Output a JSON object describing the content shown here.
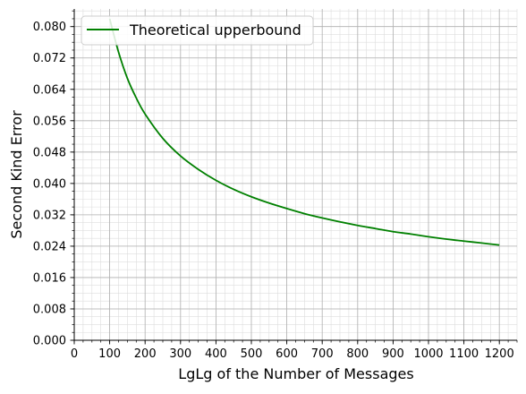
{
  "chart_data": {
    "type": "line",
    "title": "",
    "xlabel": "LgLg of the Number of Messages",
    "ylabel": "Second Kind Error",
    "xlim": [
      0,
      1250
    ],
    "ylim": [
      0,
      0.0845
    ],
    "x_ticks": [
      0,
      100,
      200,
      300,
      400,
      500,
      600,
      700,
      800,
      900,
      1000,
      1100,
      1200
    ],
    "x_tick_labels": [
      "0",
      "100",
      "200",
      "300",
      "400",
      "500",
      "600",
      "700",
      "800",
      "900",
      "1000",
      "1100",
      "1200"
    ],
    "y_ticks": [
      0,
      0.008,
      0.016,
      0.024,
      0.032,
      0.04,
      0.048,
      0.056,
      0.064,
      0.072,
      0.08
    ],
    "y_tick_labels": [
      "0.000",
      "0.008",
      "0.016",
      "0.024",
      "0.032",
      "0.040",
      "0.048",
      "0.056",
      "0.064",
      "0.072",
      "0.080"
    ],
    "grid": "major and minor",
    "legend": {
      "position": "top-left",
      "entries": [
        "Theoretical upperbound"
      ]
    },
    "series": [
      {
        "name": "Theoretical upperbound",
        "color": "#008000",
        "x": [
          100,
          125,
          150,
          175,
          200,
          250,
          300,
          350,
          400,
          450,
          500,
          550,
          600,
          650,
          700,
          750,
          800,
          850,
          900,
          950,
          1000,
          1050,
          1100,
          1150,
          1200
        ],
        "y": [
          0.082,
          0.0735,
          0.0668,
          0.0618,
          0.0577,
          0.0515,
          0.047,
          0.0436,
          0.0408,
          0.0385,
          0.0366,
          0.035,
          0.0336,
          0.0323,
          0.0312,
          0.0302,
          0.0293,
          0.0285,
          0.0277,
          0.0271,
          0.0264,
          0.0258,
          0.0253,
          0.0248,
          0.0243
        ]
      }
    ]
  }
}
